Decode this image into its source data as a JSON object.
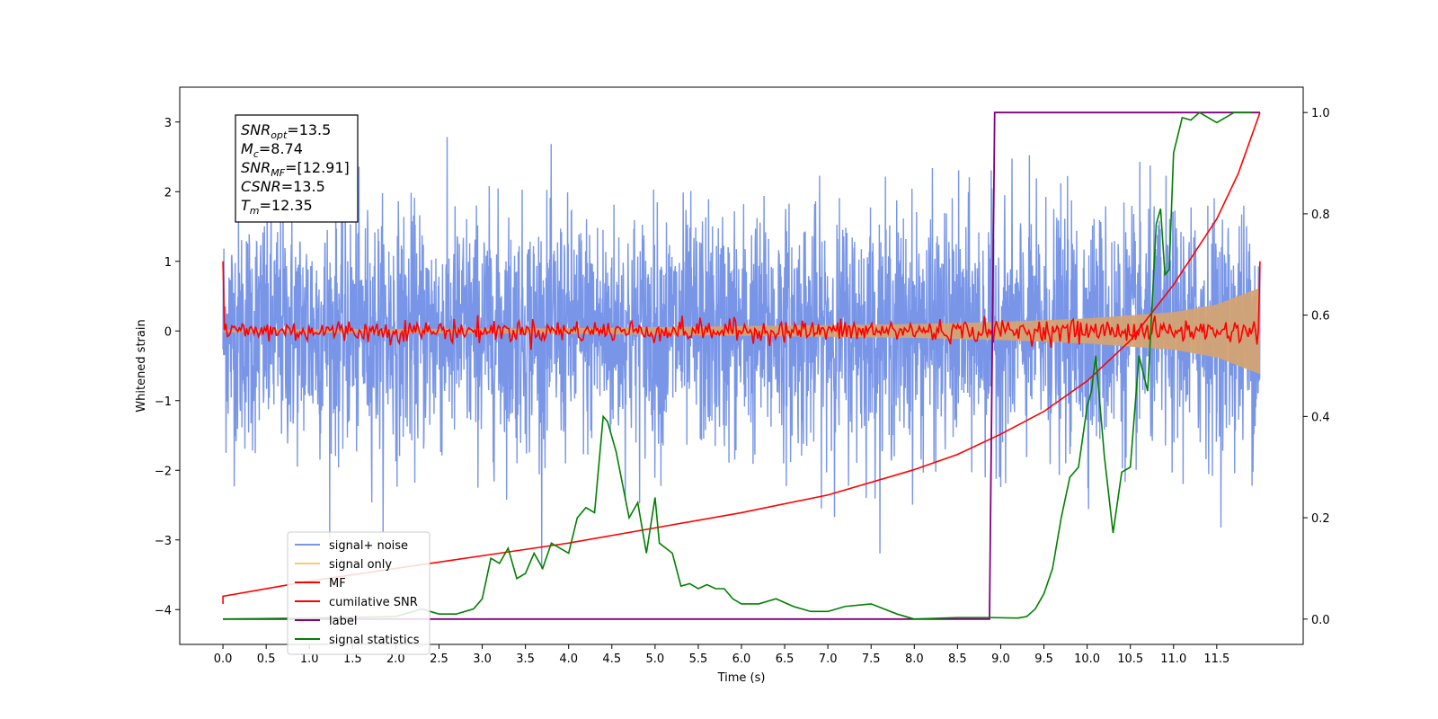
{
  "chart_data": {
    "type": "line",
    "xlabel": "Time (s)",
    "ylabel": "Whitened strain",
    "xlim": [
      -0.5,
      12.5
    ],
    "ylim": [
      -4.5,
      3.5
    ],
    "y2lim": [
      -0.05,
      1.05
    ],
    "x_ticks": [
      "0.0",
      "0.5",
      "1.0",
      "1.5",
      "2.0",
      "2.5",
      "3.0",
      "3.5",
      "4.0",
      "4.5",
      "5.0",
      "5.5",
      "6.0",
      "6.5",
      "7.0",
      "7.5",
      "8.0",
      "8.5",
      "9.0",
      "9.5",
      "10.0",
      "10.5",
      "11.0",
      "11.5"
    ],
    "y_ticks": [
      "3",
      "2",
      "1",
      "0",
      "−1",
      "−2",
      "−3",
      "−4"
    ],
    "y2_ticks": [
      "1.0",
      "0.8",
      "0.6",
      "0.4",
      "0.2",
      "0.0"
    ],
    "grid": false,
    "legend": {
      "placement": "lower-left",
      "entries": [
        {
          "label": "signal+ noise",
          "color": "#7895e8"
        },
        {
          "label": "signal only",
          "color": "#f5c97a"
        },
        {
          "label": "MF",
          "color": "#ff0000"
        },
        {
          "label": "cumilative SNR",
          "color": "#ff0000"
        },
        {
          "label": "label",
          "color": "#800080"
        },
        {
          "label": "signal statistics",
          "color": "#008000"
        }
      ]
    },
    "annotation": {
      "lines": [
        {
          "base": "SNR",
          "sub": "opt",
          "rest": "=13.5"
        },
        {
          "base": "M",
          "sub": "c",
          "rest": "=8.74"
        },
        {
          "base": "SNR",
          "sub": "MF",
          "rest": "=[12.91]"
        },
        {
          "base": "CSNR",
          "sub": "",
          "rest": "=13.5"
        },
        {
          "base": "T",
          "sub": "m",
          "rest": "=12.35"
        }
      ]
    },
    "series": [
      {
        "name": "signal+ noise",
        "axis": "left",
        "color": "#7895e8",
        "description_envelope": {
          "t_start": 0.0,
          "t_end": 12.0,
          "typical_max": 2.3,
          "typical_min": -2.0,
          "peak_max": 3.15,
          "peak_min": -4.05
        }
      },
      {
        "name": "signal only",
        "axis": "left",
        "color": "#d4a373",
        "envelope_amplitude": {
          "t": [
            0.0,
            4.0,
            6.0,
            8.0,
            9.0,
            10.0,
            11.0,
            11.5,
            12.0
          ],
          "a": [
            0.02,
            0.04,
            0.07,
            0.1,
            0.13,
            0.18,
            0.27,
            0.38,
            0.62
          ]
        }
      },
      {
        "name": "MF",
        "axis": "left",
        "color": "#ff0000",
        "start_value": 1.0,
        "end_value": 1.0,
        "noise_amplitude": 0.08
      },
      {
        "name": "cumilative SNR",
        "axis": "right",
        "color": "#ff0000",
        "x": [
          0.0,
          0.0,
          1.0,
          2.0,
          3.0,
          4.0,
          5.0,
          6.0,
          7.0,
          8.0,
          8.5,
          9.0,
          9.5,
          10.0,
          10.5,
          11.0,
          11.5,
          11.75,
          12.0
        ],
        "y": [
          0.03,
          0.045,
          0.075,
          0.1,
          0.125,
          0.15,
          0.18,
          0.21,
          0.245,
          0.295,
          0.325,
          0.365,
          0.41,
          0.47,
          0.55,
          0.66,
          0.79,
          0.88,
          1.0
        ]
      },
      {
        "name": "label",
        "axis": "right",
        "color": "#800080",
        "x": [
          0.0,
          8.87,
          8.93,
          12.0
        ],
        "y": [
          0.0,
          0.0,
          1.0,
          1.0
        ]
      },
      {
        "name": "signal statistics",
        "axis": "right",
        "color": "#008000",
        "x": [
          0.0,
          1.0,
          2.0,
          2.2,
          2.3,
          2.5,
          2.7,
          2.9,
          3.0,
          3.1,
          3.2,
          3.3,
          3.4,
          3.5,
          3.6,
          3.7,
          3.8,
          3.9,
          4.0,
          4.1,
          4.2,
          4.3,
          4.4,
          4.45,
          4.55,
          4.7,
          4.8,
          4.9,
          5.0,
          5.05,
          5.2,
          5.3,
          5.4,
          5.5,
          5.6,
          5.7,
          5.8,
          5.9,
          6.0,
          6.2,
          6.4,
          6.6,
          6.8,
          7.0,
          7.2,
          7.5,
          7.8,
          8.0,
          8.5,
          8.87,
          9.2,
          9.3,
          9.4,
          9.5,
          9.6,
          9.7,
          9.8,
          9.9,
          10.0,
          10.05,
          10.1,
          10.2,
          10.3,
          10.4,
          10.5,
          10.6,
          10.7,
          10.8,
          10.85,
          10.9,
          10.95,
          11.0,
          11.1,
          11.2,
          11.3,
          11.4,
          11.5,
          11.6,
          11.7,
          11.8,
          11.9
        ],
        "y": [
          0.0,
          0.002,
          0.005,
          0.015,
          0.02,
          0.01,
          0.01,
          0.02,
          0.04,
          0.12,
          0.11,
          0.14,
          0.08,
          0.09,
          0.13,
          0.1,
          0.15,
          0.14,
          0.13,
          0.2,
          0.22,
          0.21,
          0.4,
          0.39,
          0.33,
          0.2,
          0.23,
          0.13,
          0.24,
          0.15,
          0.13,
          0.065,
          0.07,
          0.06,
          0.068,
          0.06,
          0.06,
          0.04,
          0.03,
          0.03,
          0.04,
          0.025,
          0.015,
          0.015,
          0.025,
          0.03,
          0.01,
          0.0,
          0.003,
          0.003,
          0.002,
          0.005,
          0.02,
          0.05,
          0.1,
          0.2,
          0.28,
          0.3,
          0.42,
          0.45,
          0.52,
          0.32,
          0.17,
          0.29,
          0.3,
          0.52,
          0.45,
          0.78,
          0.81,
          0.68,
          0.69,
          0.92,
          0.99,
          0.985,
          1.0,
          0.99,
          0.98,
          0.99,
          1.0,
          1.0,
          1.0
        ]
      }
    ]
  }
}
